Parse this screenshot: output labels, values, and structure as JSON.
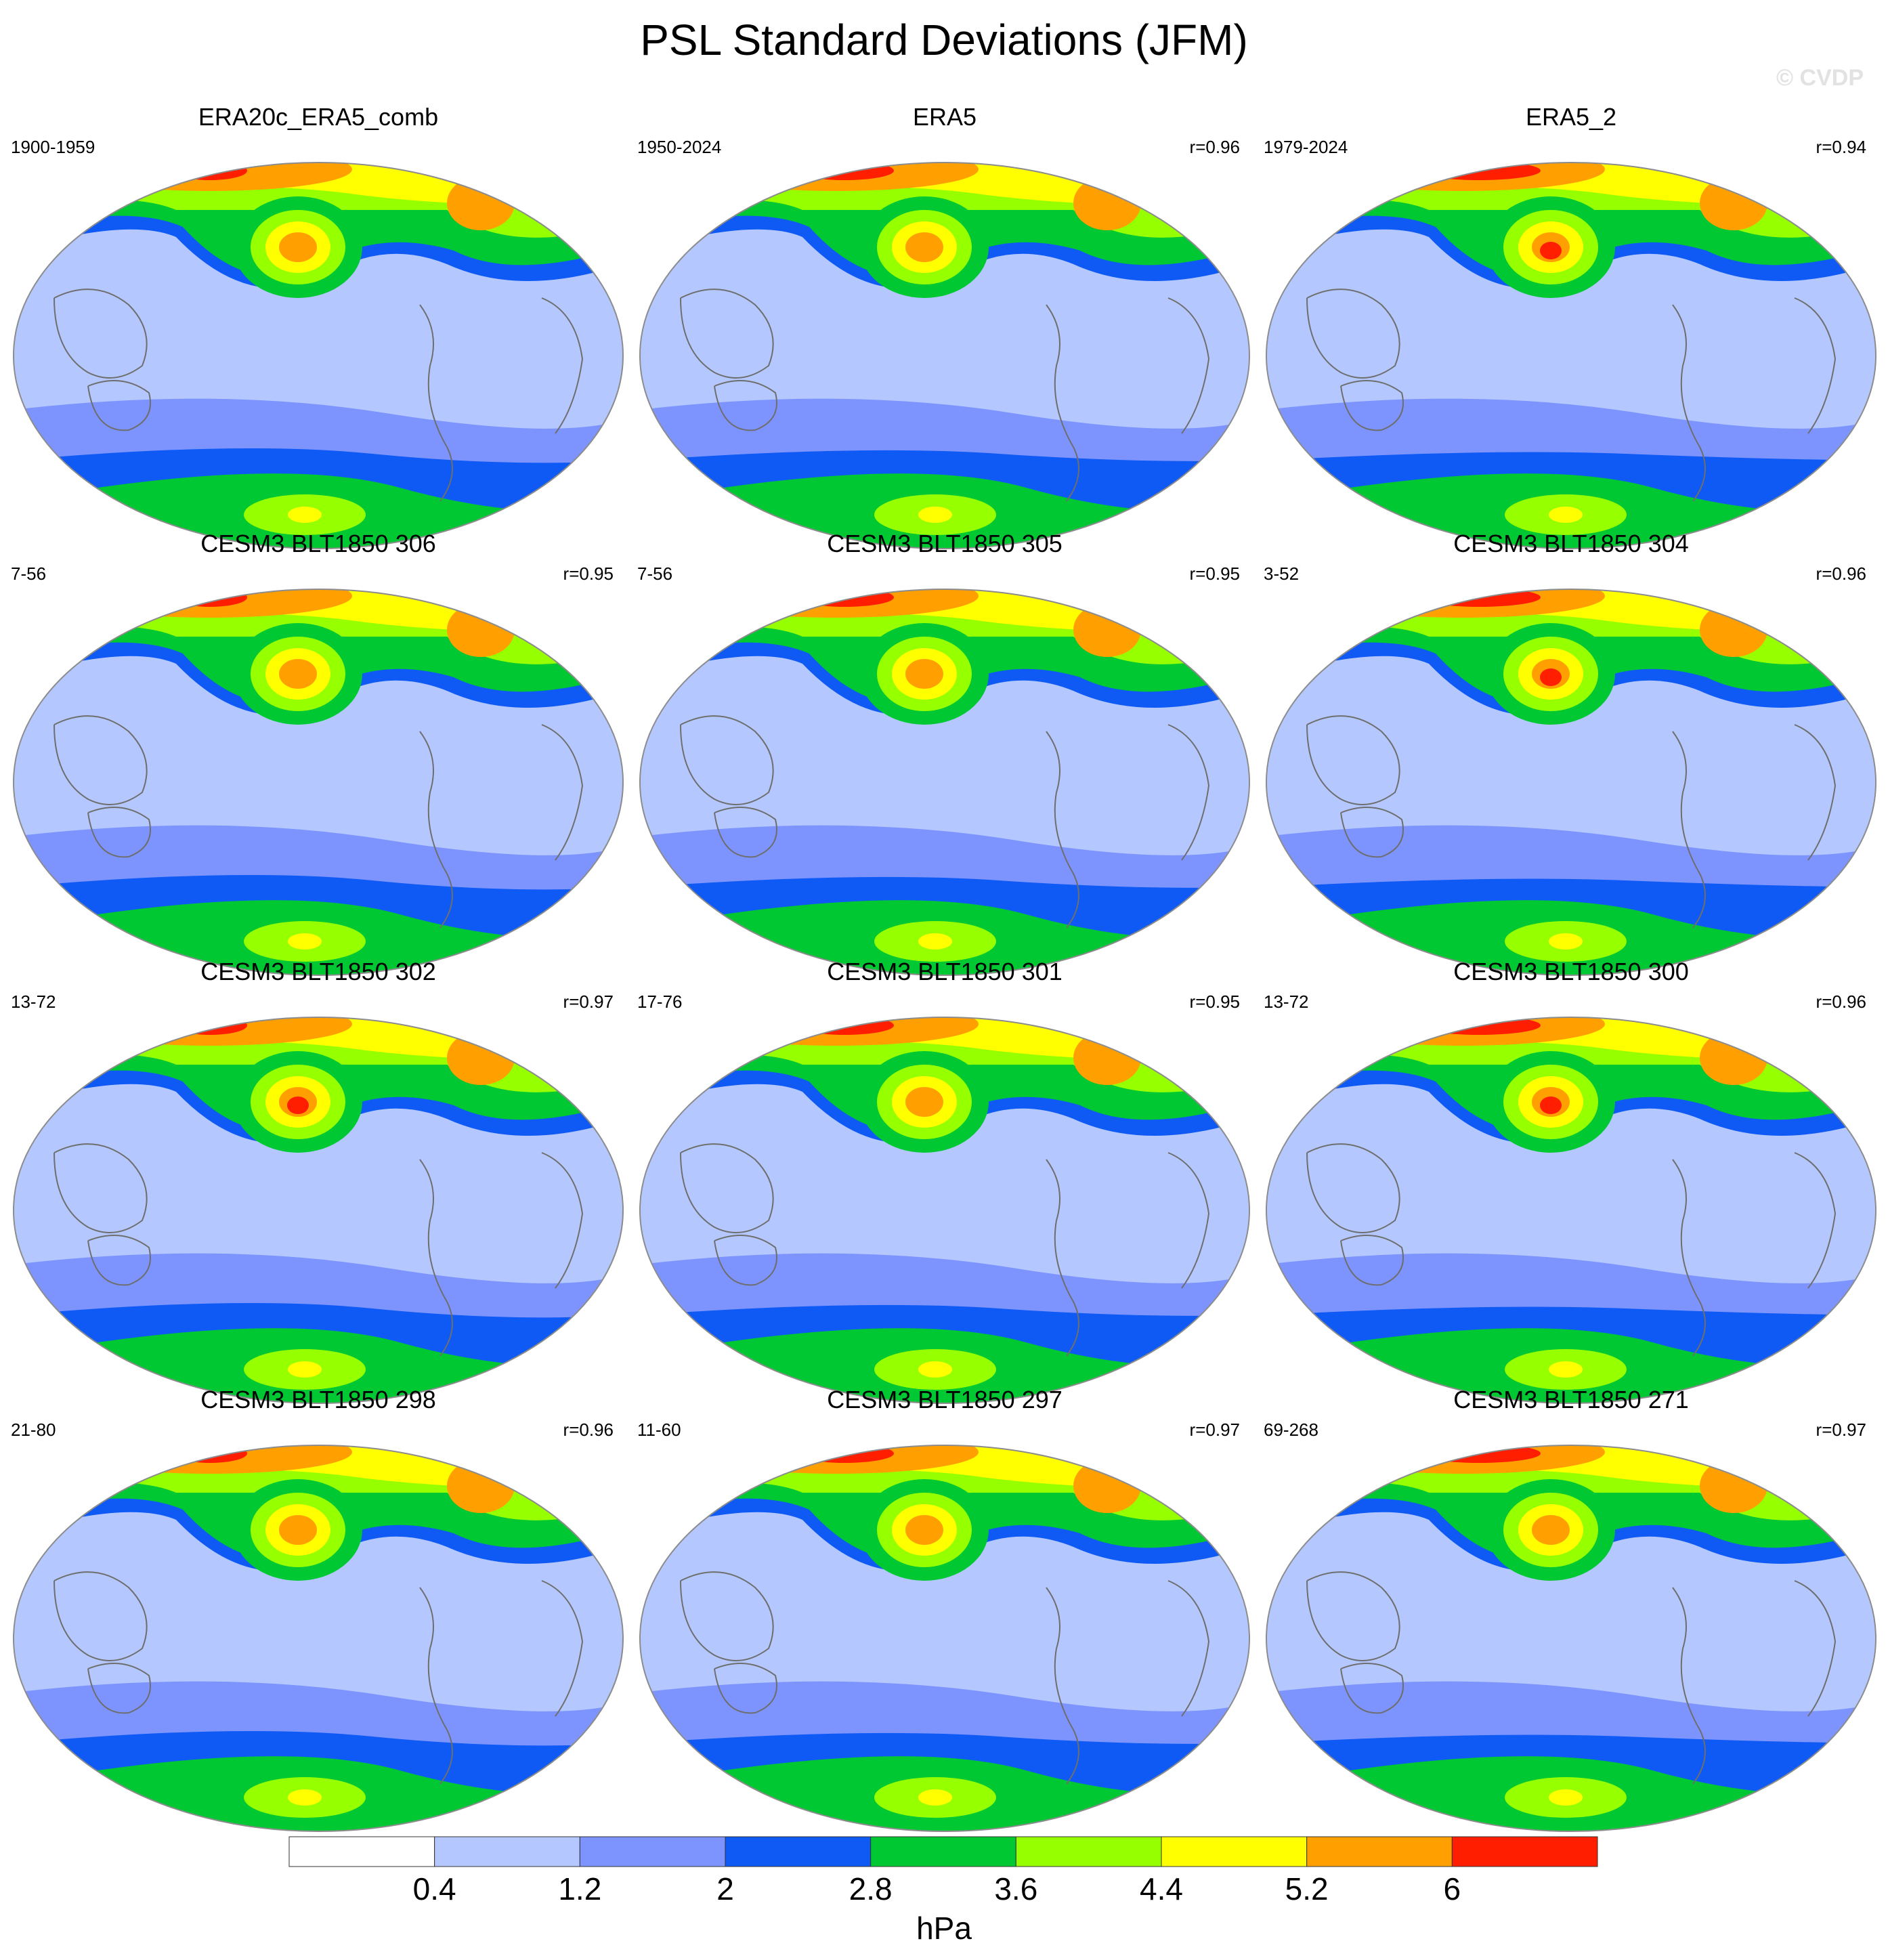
{
  "figure": {
    "title": "PSL Standard Deviations (JFM)",
    "watermark": "© CVDP"
  },
  "panels": [
    {
      "title": "ERA20c_ERA5_comb",
      "years": "1900-1959",
      "corr": ""
    },
    {
      "title": "ERA5",
      "years": "1950-2024",
      "corr": "r=0.96"
    },
    {
      "title": "ERA5_2",
      "years": "1979-2024",
      "corr": "r=0.94"
    },
    {
      "title": "CESM3 BLT1850 306",
      "years": "7-56",
      "corr": "r=0.95"
    },
    {
      "title": "CESM3 BLT1850 305",
      "years": "7-56",
      "corr": "r=0.95"
    },
    {
      "title": "CESM3 BLT1850 304",
      "years": "3-52",
      "corr": "r=0.96"
    },
    {
      "title": "CESM3 BLT1850 302",
      "years": "13-72",
      "corr": "r=0.97"
    },
    {
      "title": "CESM3 BLT1850 301",
      "years": "17-76",
      "corr": "r=0.95"
    },
    {
      "title": "CESM3 BLT1850 300",
      "years": "13-72",
      "corr": "r=0.96"
    },
    {
      "title": "CESM3 BLT1850 298",
      "years": "21-80",
      "corr": "r=0.96"
    },
    {
      "title": "CESM3 BLT1850 297",
      "years": "11-60",
      "corr": "r=0.97"
    },
    {
      "title": "CESM3 BLT1850 271",
      "years": "69-268",
      "corr": "r=0.97"
    }
  ],
  "colorbar": {
    "units": "hPa",
    "tick_labels": [
      "0.4",
      "1.2",
      "2",
      "2.8",
      "3.6",
      "4.4",
      "5.2",
      "6"
    ],
    "colors": [
      "#ffffff",
      "#b4c8ff",
      "#7d94ff",
      "#0f5af5",
      "#00c832",
      "#96ff00",
      "#ffff00",
      "#ffa000",
      "#ff1e00"
    ]
  }
}
